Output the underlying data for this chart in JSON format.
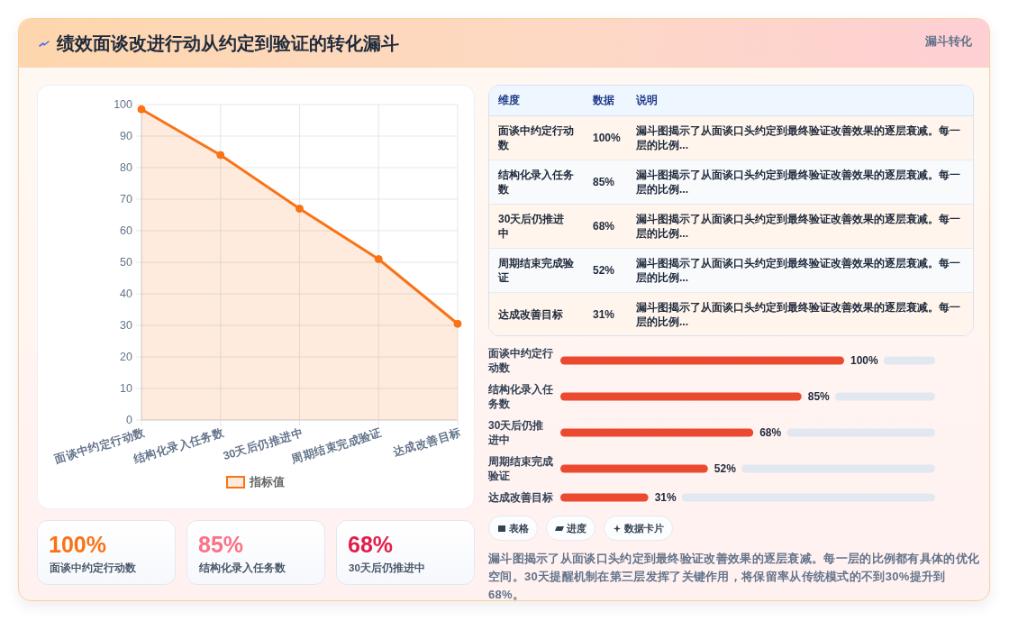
{
  "chart_data": [
    {
      "type": "other",
      "title": "绩效面谈改进行动从约定到验证的转化漏斗",
      "subtitle": "漏斗转化"
    },
    {
      "type": "area",
      "categories": [
        "面谈中约定行动数",
        "结构化录入任务数",
        "30天后仍推进中",
        "周期结束完成验证",
        "达成改善目标"
      ],
      "series": [
        {
          "name": "指标值",
          "color": "#f97316",
          "values": [
            98.5,
            84,
            67,
            51,
            30.5
          ]
        }
      ],
      "ylim": [
        0,
        100
      ],
      "yticks": [
        0,
        10,
        20,
        30,
        40,
        50,
        60,
        70,
        80,
        90,
        100
      ],
      "grid": true,
      "legend": "bottom",
      "marker": "circle",
      "line_style": "solid"
    },
    {
      "type": "other",
      "categories": [
        "面谈中约定行动数",
        "结构化录入任务数",
        "30天后仍推进中"
      ],
      "value_labels": [
        "100%",
        "85%",
        "68%"
      ]
    },
    {
      "type": "other",
      "categories": [
        "面谈中约定行动数",
        "结构化录入任务数",
        "30天后仍推进中",
        "周期结束完成验证",
        "达成改善目标"
      ],
      "value_labels": [
        "100%",
        "85%",
        "68%",
        "52%",
        "31%"
      ],
      "annotations": [
        "维度",
        "数据",
        "说明",
        "漏斗图揭示了从面谈口头约定到最终验证改善效果的逐层衰减。每一层的比例...",
        "漏斗图揭示了从面谈口头约定到最终验证改善效果的逐层衰减。每一层的比例...",
        "漏斗图揭示了从面谈口头约定到最终验证改善效果的逐层衰减。每一层的比例...",
        "漏斗图揭示了从面谈口头约定到最终验证改善效果的逐层衰减。每一层的比例...",
        "漏斗图揭示了从面谈口头约定到最终验证改善效果的逐层衰减。每一层的比例..."
      ]
    },
    {
      "type": "bar",
      "orientation": "horizontal",
      "categories": [
        "面谈中约定行动数",
        "结构化录入任务数",
        "30天后仍推进中",
        "周期结束完成验证",
        "达成改善目标"
      ],
      "values": [
        100,
        85,
        68,
        52,
        31
      ],
      "value_labels": [
        "100%",
        "85%",
        "68%",
        "52%",
        "31%"
      ],
      "color": "#ec4a30"
    },
    {
      "type": "other",
      "categories": [
        "表格",
        "进度",
        "数据卡片"
      ],
      "annotations": [
        "漏斗图揭示了从面谈口头约定到最终验证改善效果的逐层衰减。每一层的比例都有具体的优化空间。30天提醒机制在第三层发挥了关键作用，将保留率从传统模式的不到30%提升到68%。"
      ]
    }
  ]
}
